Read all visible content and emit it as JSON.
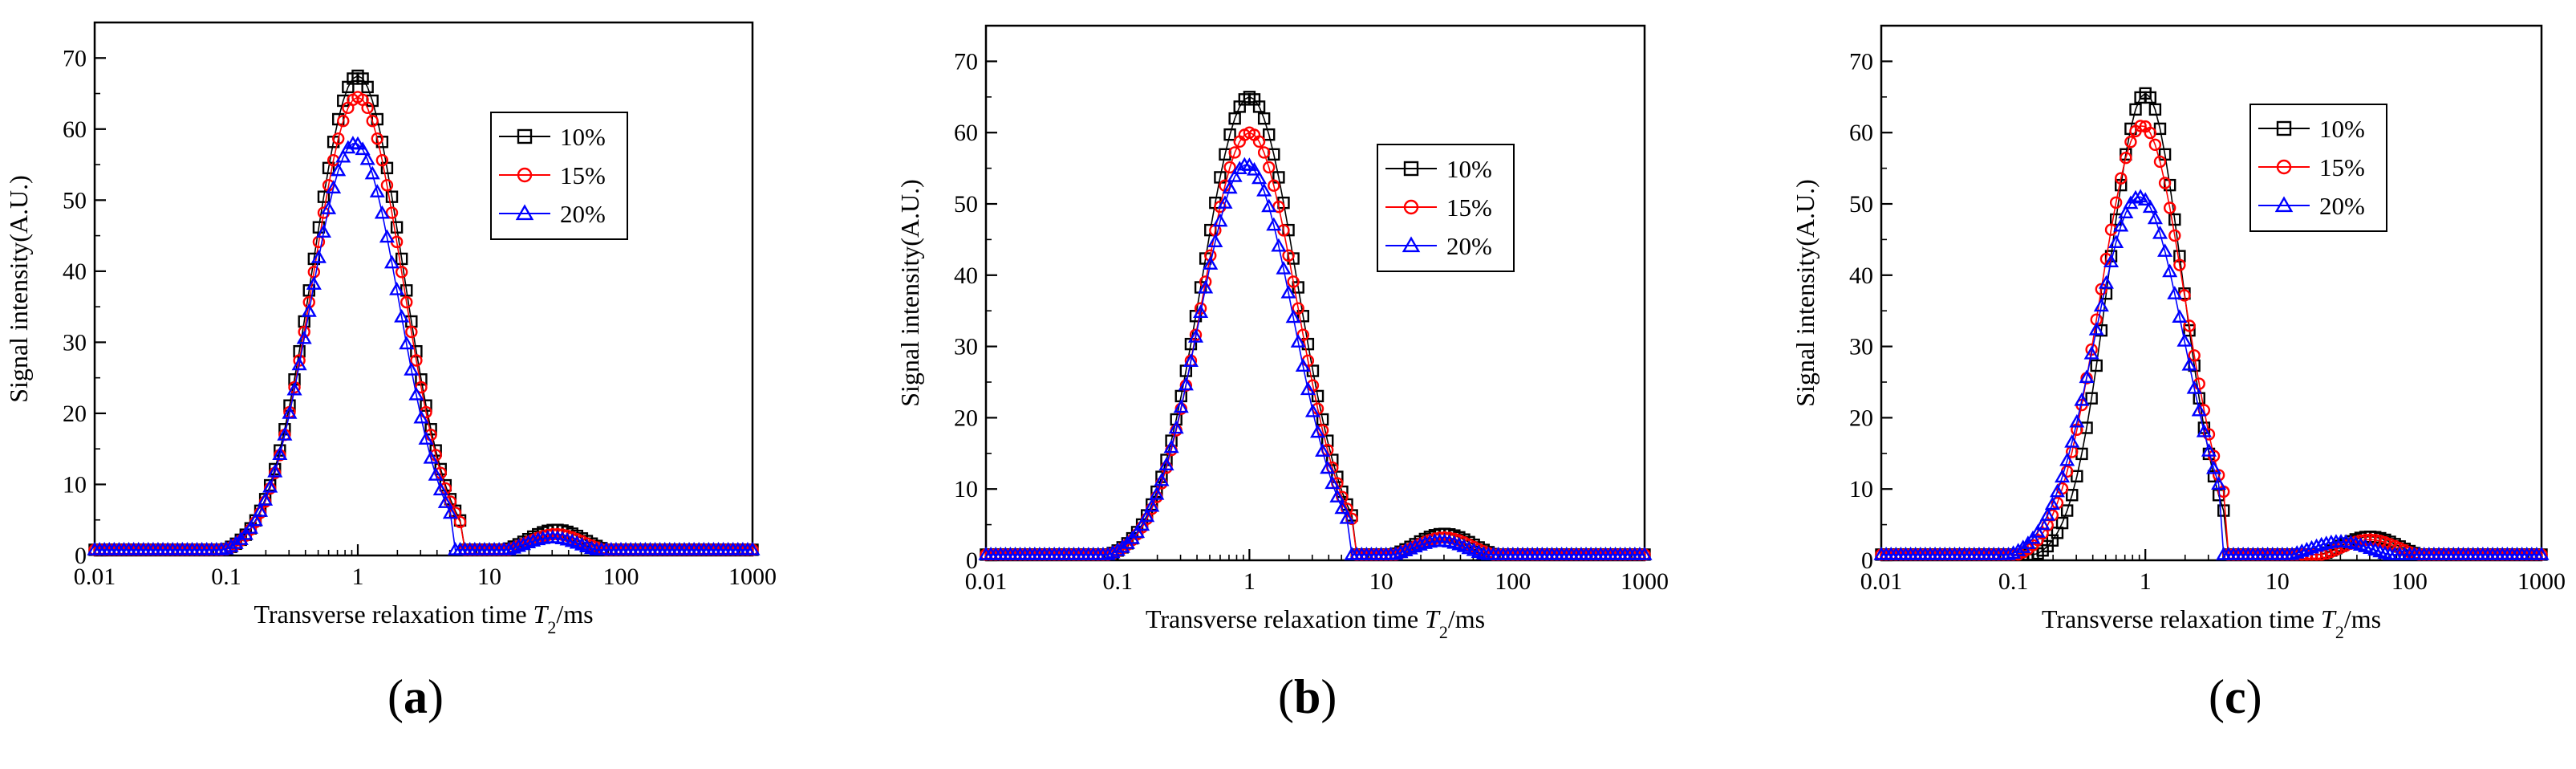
{
  "chart_data": [
    {
      "type": "scatter",
      "panel": "(a)",
      "panel_letter": "a",
      "xscale": "log",
      "xlim": [
        0.01,
        1000
      ],
      "ylim": [
        0,
        75
      ],
      "xticks": [
        "0.01",
        "0.1",
        "1",
        "10",
        "100",
        "1000"
      ],
      "yticks": [
        "0",
        "10",
        "20",
        "30",
        "40",
        "50",
        "60",
        "70"
      ],
      "xlabel": "Transverse relaxation time T2/ms",
      "xlabel_main": "Transverse relaxation time ",
      "xlabel_var": "T",
      "xlabel_sub": "2",
      "xlabel_unit": "/ms",
      "ylabel": "Signal intensity(A.U.)",
      "legend_position": "upper-right",
      "series": [
        {
          "name": "10%",
          "marker": "square",
          "color": "#000000",
          "peaks": [
            {
              "center_ms": 1.0,
              "height": 67.5,
              "width_decades": 0.34,
              "lower_ms": 0.075,
              "upper_ms": 6.3
            },
            {
              "center_ms": 32,
              "height": 3.6,
              "width_decades": 0.22,
              "lower_ms": 10,
              "upper_ms": 120
            }
          ]
        },
        {
          "name": "15%",
          "marker": "circle",
          "color": "#ff0000",
          "peaks": [
            {
              "center_ms": 1.0,
              "height": 64.5,
              "width_decades": 0.34,
              "lower_ms": 0.075,
              "upper_ms": 6.0
            },
            {
              "center_ms": 32,
              "height": 3.0,
              "width_decades": 0.22,
              "lower_ms": 10,
              "upper_ms": 120
            }
          ]
        },
        {
          "name": "20%",
          "marker": "triangle",
          "color": "#0000ff",
          "peaks": [
            {
              "center_ms": 0.95,
              "height": 58,
              "width_decades": 0.34,
              "lower_ms": 0.075,
              "upper_ms": 5.5
            },
            {
              "center_ms": 30,
              "height": 2.5,
              "width_decades": 0.22,
              "lower_ms": 10,
              "upper_ms": 110
            }
          ]
        }
      ]
    },
    {
      "type": "scatter",
      "panel": "(b)",
      "panel_letter": "b",
      "xscale": "log",
      "xlim": [
        0.01,
        1000
      ],
      "ylim": [
        0,
        75
      ],
      "xticks": [
        "0.01",
        "0.1",
        "1",
        "10",
        "100",
        "1000"
      ],
      "yticks": [
        "0",
        "10",
        "20",
        "30",
        "40",
        "50",
        "60",
        "70"
      ],
      "xlabel": "Transverse relaxation time T2/ms",
      "xlabel_main": "Transverse relaxation time ",
      "xlabel_var": "T",
      "xlabel_sub": "2",
      "xlabel_unit": "/ms",
      "ylabel": "Signal intensity(A.U.)",
      "legend_position": "upper-right",
      "series": [
        {
          "name": "10%",
          "marker": "square",
          "color": "#000000",
          "peaks": [
            {
              "center_ms": 1.0,
              "height": 65,
              "width_decades": 0.36,
              "lower_ms": 0.06,
              "upper_ms": 6.5
            },
            {
              "center_ms": 30,
              "height": 3.7,
              "width_decades": 0.22,
              "lower_ms": 10,
              "upper_ms": 130
            }
          ]
        },
        {
          "name": "15%",
          "marker": "circle",
          "color": "#ff0000",
          "peaks": [
            {
              "center_ms": 1.0,
              "height": 60,
              "width_decades": 0.36,
              "lower_ms": 0.06,
              "upper_ms": 6.2
            },
            {
              "center_ms": 30,
              "height": 3.2,
              "width_decades": 0.22,
              "lower_ms": 10,
              "upper_ms": 130
            }
          ]
        },
        {
          "name": "20%",
          "marker": "triangle",
          "color": "#0000ff",
          "peaks": [
            {
              "center_ms": 0.95,
              "height": 55.5,
              "width_decades": 0.36,
              "lower_ms": 0.06,
              "upper_ms": 5.8
            },
            {
              "center_ms": 28,
              "height": 2.7,
              "width_decades": 0.22,
              "lower_ms": 10,
              "upper_ms": 120
            }
          ]
        }
      ]
    },
    {
      "type": "scatter",
      "panel": "(c)",
      "panel_letter": "c",
      "xscale": "log",
      "xlim": [
        0.01,
        1000
      ],
      "ylim": [
        0,
        75
      ],
      "xticks": [
        "0.01",
        "0.1",
        "1",
        "10",
        "100",
        "1000"
      ],
      "yticks": [
        "0",
        "10",
        "20",
        "30",
        "40",
        "50",
        "60",
        "70"
      ],
      "xlabel": "Transverse relaxation time T2/ms",
      "xlabel_main": "Transverse relaxation time ",
      "xlabel_var": "T",
      "xlabel_sub": "2",
      "xlabel_unit": "/ms",
      "ylabel": "Signal intensity(A.U.)",
      "legend_position": "upper-left",
      "series": [
        {
          "name": "10%",
          "marker": "square",
          "color": "#000000",
          "peaks": [
            {
              "center_ms": 1.0,
              "height": 65.5,
              "width_decades": 0.28,
              "lower_ms": 0.09,
              "upper_ms": 4.1
            },
            {
              "center_ms": 50,
              "height": 3.3,
              "width_decades": 0.22,
              "lower_ms": 12,
              "upper_ms": 250
            }
          ]
        },
        {
          "name": "15%",
          "marker": "circle",
          "color": "#ff0000",
          "peaks": [
            {
              "center_ms": 0.95,
              "height": 61,
              "width_decades": 0.32,
              "lower_ms": 0.08,
              "upper_ms": 4.0
            },
            {
              "center_ms": 50,
              "height": 2.9,
              "width_decades": 0.22,
              "lower_ms": 12,
              "upper_ms": 250
            }
          ]
        },
        {
          "name": "20%",
          "marker": "triangle",
          "color": "#0000ff",
          "peaks": [
            {
              "center_ms": 0.9,
              "height": 51,
              "width_decades": 0.34,
              "lower_ms": 0.07,
              "upper_ms": 3.9
            },
            {
              "center_ms": 30,
              "height": 2.6,
              "width_decades": 0.24,
              "lower_ms": 10,
              "upper_ms": 160
            }
          ]
        }
      ]
    }
  ]
}
